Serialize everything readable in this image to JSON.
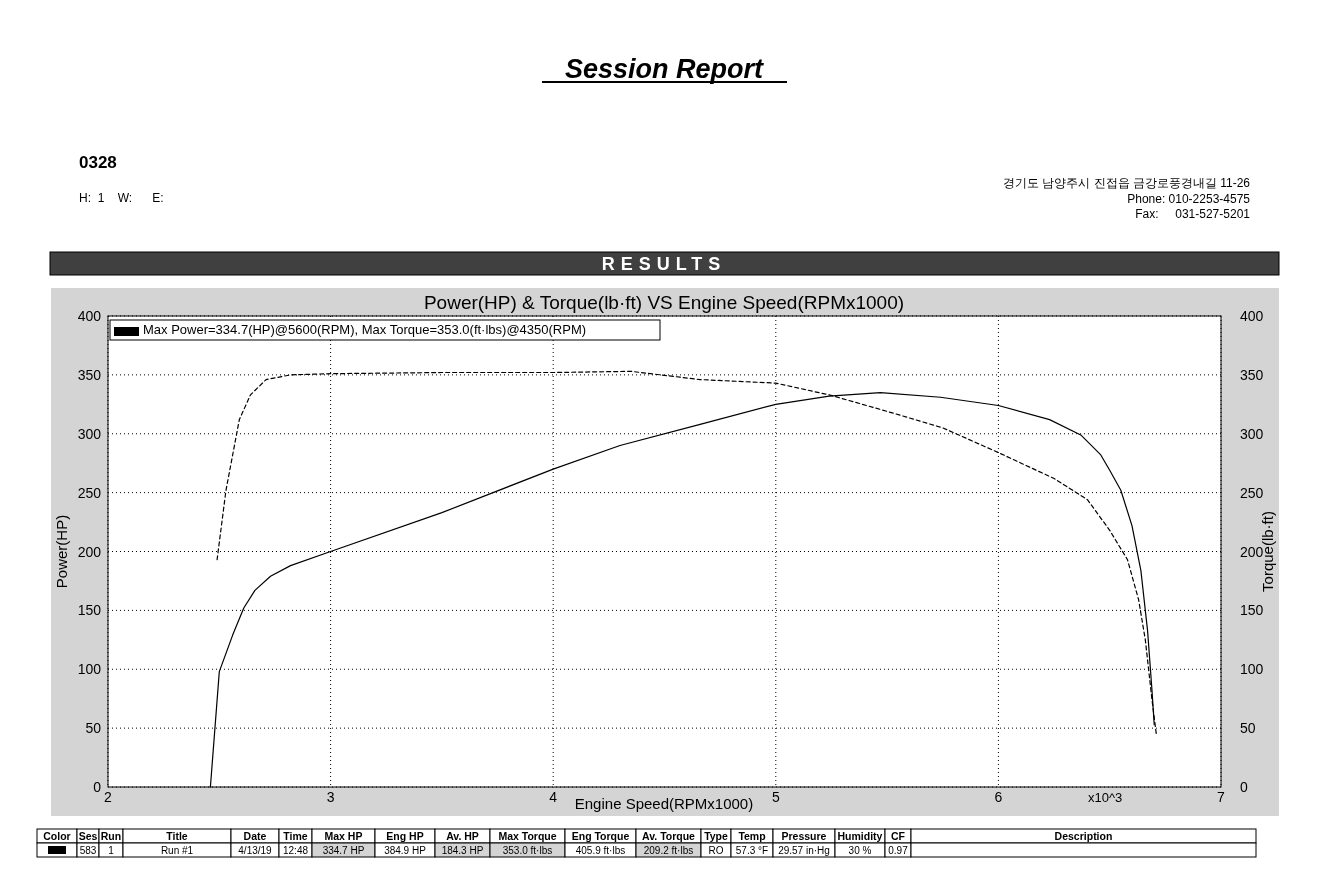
{
  "chart_data": {
    "type": "line",
    "title": "Power(HP) & Torque(lb·ft) VS Engine Speed(RPMx1000)",
    "xlabel": "Engine Speed(RPMx1000)",
    "ylabel": "Power(HP)",
    "y2label": "Torque(lb·ft)",
    "xlim": [
      2,
      7
    ],
    "xticks": [
      2,
      3,
      4,
      5,
      6,
      7
    ],
    "ylim": [
      0,
      400
    ],
    "yticks": [
      0,
      50,
      100,
      150,
      200,
      250,
      300,
      350,
      400
    ],
    "y2lim": [
      0,
      400
    ],
    "y2ticks": [
      0,
      50,
      100,
      150,
      200,
      250,
      300,
      350,
      400
    ],
    "grid": true,
    "series": [
      {
        "color": "#000000",
        "line_style": "solid",
        "x": [
          2.46,
          2.5,
          2.56,
          2.61,
          2.66,
          2.73,
          2.82,
          3.0,
          3.5,
          4.0,
          4.3,
          4.66,
          5.0,
          5.24,
          5.47,
          5.74,
          6.0,
          6.23,
          6.37,
          6.46,
          6.5,
          6.55,
          6.6,
          6.64,
          6.67,
          6.69,
          6.7
        ],
        "values": [
          0,
          98,
          129,
          152,
          167,
          179,
          188,
          200,
          233,
          270,
          290,
          308,
          325,
          332,
          335,
          331,
          324,
          312,
          299,
          282,
          269,
          252,
          222,
          184,
          133,
          82,
          53
        ]
      },
      {
        "color": "#000000",
        "line_style": "dashed",
        "x": [
          2.49,
          2.53,
          2.56,
          2.59,
          2.64,
          2.71,
          2.82,
          3.0,
          3.5,
          4.0,
          4.35,
          4.66,
          5.0,
          5.24,
          5.5,
          5.75,
          6.0,
          6.25,
          6.4,
          6.5,
          6.58,
          6.63,
          6.66,
          6.69,
          6.71
        ],
        "values": [
          193,
          252,
          282,
          312,
          333,
          346,
          350,
          351,
          352,
          352,
          353,
          346,
          343,
          333,
          319,
          305,
          284,
          262,
          244,
          218,
          193,
          159,
          125,
          74,
          44
        ]
      }
    ],
    "annotations": [
      "Session Report",
      "0328",
      "H:  1    W:      E:",
      "경기도 남양주시 진접읍 금강로풍경내길 11-26",
      "Phone: 010-2253-4575",
      "Fax:     031-527-5201",
      "RESULTS",
      "Max Power=334.7(HP)@5600(RPM), Max Torque=353.0(ft·lbs)@4350(RPM)",
      "x10^3",
      "Color",
      "Ses",
      "Run",
      "Title",
      "Date",
      "Time",
      "Max HP",
      "Eng HP",
      "Av. HP",
      "Max Torque",
      "Eng Torque",
      "Av. Torque",
      "Type",
      "Temp",
      "Pressure",
      "Humidity",
      "CF",
      "Description",
      "583",
      "1",
      "Run #1",
      "4/13/19",
      "12:48",
      "334.7 HP",
      "384.9 HP",
      "184.3 HP",
      "353.0 ft·lbs",
      "405.9 ft·lbs",
      "209.2 ft·lbs",
      "RO",
      "57.3 °F",
      "29.57 in·Hg",
      "30 %",
      "0.97"
    ]
  }
}
